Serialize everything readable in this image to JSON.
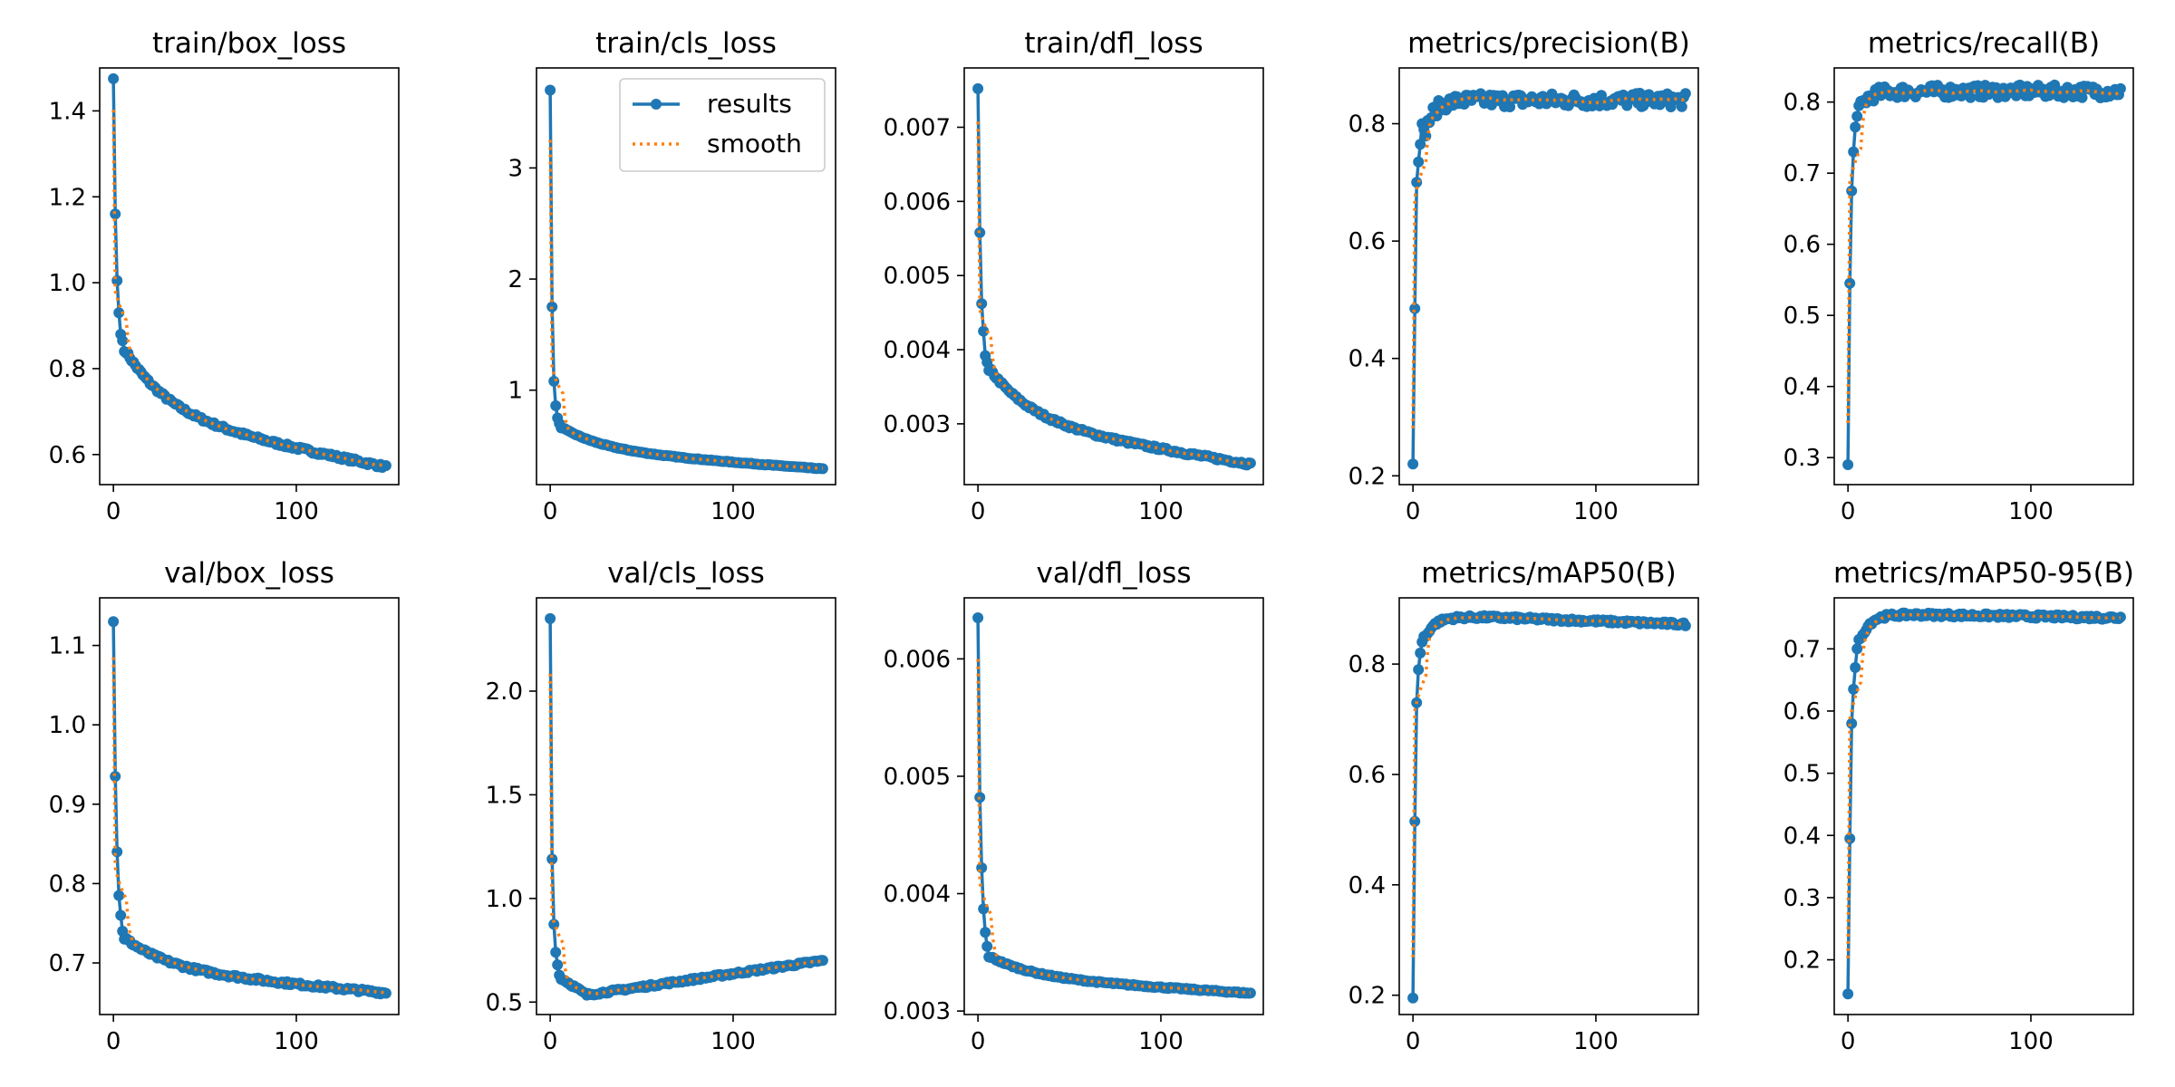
{
  "colors": {
    "results": "#1f77b4",
    "smooth": "#ff7f0e",
    "axes": "#000000",
    "background": "#ffffff"
  },
  "legend": {
    "results_label": "results",
    "smooth_label": "smooth",
    "location": "top-right of train/cls_loss"
  },
  "chart_data": [
    {
      "type": "line",
      "title": "train/box_loss",
      "xlabel": "",
      "ylabel": "",
      "x_range": [
        0,
        149
      ],
      "xlim": [
        -7.5,
        156
      ],
      "xticks": [
        0,
        100
      ],
      "ylim": [
        0.53,
        1.5
      ],
      "yticks": [
        0.6,
        0.8,
        1.0,
        1.2,
        1.4
      ],
      "ytick_labels": [
        "0.6",
        "0.8",
        "1.0",
        "1.2",
        "1.4"
      ],
      "series": [
        {
          "name": "results",
          "shape": "decay",
          "start": 1.475,
          "end": 0.57,
          "early": [
            1.475,
            1.16,
            1.005,
            0.93,
            0.88,
            0.865,
            0.84
          ],
          "noise": 0.004
        },
        {
          "name": "smooth"
        }
      ]
    },
    {
      "type": "line",
      "title": "train/cls_loss",
      "xlabel": "",
      "ylabel": "",
      "x_range": [
        0,
        149
      ],
      "xlim": [
        -7.5,
        156
      ],
      "xticks": [
        0,
        100
      ],
      "ylim": [
        0.15,
        3.9
      ],
      "yticks": [
        1,
        2,
        3
      ],
      "ytick_labels": [
        "1",
        "2",
        "3"
      ],
      "series": [
        {
          "name": "results",
          "shape": "decay",
          "start": 3.7,
          "end": 0.29,
          "early": [
            3.7,
            1.75,
            1.08,
            0.86,
            0.75,
            0.7,
            0.66
          ],
          "noise": 0.003
        },
        {
          "name": "smooth"
        }
      ]
    },
    {
      "type": "line",
      "title": "train/dfl_loss",
      "xlabel": "",
      "ylabel": "",
      "x_range": [
        0,
        149
      ],
      "xlim": [
        -7.5,
        156
      ],
      "xticks": [
        0,
        100
      ],
      "ylim": [
        0.00218,
        0.0078
      ],
      "yticks": [
        0.003,
        0.004,
        0.005,
        0.006,
        0.007
      ],
      "ytick_labels": [
        "0.003",
        "0.004",
        "0.005",
        "0.006",
        "0.007"
      ],
      "series": [
        {
          "name": "results",
          "shape": "decay",
          "start": 0.00752,
          "end": 0.00245,
          "early": [
            0.00752,
            0.00558,
            0.00462,
            0.00425,
            0.00392,
            0.00383,
            0.00372
          ],
          "noise": 2e-05
        },
        {
          "name": "smooth"
        }
      ]
    },
    {
      "type": "line",
      "title": "metrics/precision(B)",
      "xlabel": "",
      "ylabel": "",
      "x_range": [
        0,
        149
      ],
      "xlim": [
        -7.5,
        156
      ],
      "xticks": [
        0,
        100
      ],
      "ylim": [
        0.185,
        0.895
      ],
      "yticks": [
        0.2,
        0.4,
        0.6,
        0.8
      ],
      "ytick_labels": [
        "0.2",
        "0.4",
        "0.6",
        "0.8"
      ],
      "series": [
        {
          "name": "results",
          "shape": "rise",
          "start": 0.22,
          "plateau": 0.84,
          "early": [
            0.22,
            0.485,
            0.7,
            0.735,
            0.765,
            0.8,
            0.79
          ],
          "noise": 0.012
        },
        {
          "name": "smooth"
        }
      ]
    },
    {
      "type": "line",
      "title": "metrics/recall(B)",
      "xlabel": "",
      "ylabel": "",
      "x_range": [
        0,
        149
      ],
      "xlim": [
        -7.5,
        156
      ],
      "xticks": [
        0,
        100
      ],
      "ylim": [
        0.262,
        0.848
      ],
      "yticks": [
        0.3,
        0.4,
        0.5,
        0.6,
        0.7,
        0.8
      ],
      "ytick_labels": [
        "0.3",
        "0.4",
        "0.5",
        "0.6",
        "0.7",
        "0.8"
      ],
      "series": [
        {
          "name": "results",
          "shape": "rise",
          "start": 0.29,
          "plateau": 0.815,
          "early": [
            0.29,
            0.545,
            0.675,
            0.73,
            0.765,
            0.78,
            0.795
          ],
          "noise": 0.009
        },
        {
          "name": "smooth"
        }
      ]
    },
    {
      "type": "line",
      "title": "val/box_loss",
      "xlabel": "",
      "ylabel": "",
      "x_range": [
        0,
        149
      ],
      "xlim": [
        -7.5,
        156
      ],
      "xticks": [
        0,
        100
      ],
      "ylim": [
        0.635,
        1.16
      ],
      "yticks": [
        0.7,
        0.8,
        0.9,
        1.0,
        1.1
      ],
      "ytick_labels": [
        "0.7",
        "0.8",
        "0.9",
        "1.0",
        "1.1"
      ],
      "series": [
        {
          "name": "results",
          "shape": "decay",
          "start": 1.13,
          "end": 0.662,
          "early": [
            1.13,
            0.935,
            0.84,
            0.785,
            0.76,
            0.74,
            0.73
          ],
          "noise": 0.002
        },
        {
          "name": "smooth"
        }
      ]
    },
    {
      "type": "line",
      "title": "val/cls_loss",
      "xlabel": "",
      "ylabel": "",
      "x_range": [
        0,
        149
      ],
      "xlim": [
        -7.5,
        156
      ],
      "xticks": [
        0,
        100
      ],
      "ylim": [
        0.44,
        2.45
      ],
      "yticks": [
        0.5,
        1.0,
        1.5,
        2.0
      ],
      "ytick_labels": [
        "0.5",
        "1.0",
        "1.5",
        "2.0"
      ],
      "series": [
        {
          "name": "results",
          "shape": "dip",
          "start": 2.35,
          "min": 0.535,
          "end": 0.7,
          "early": [
            2.35,
            1.19,
            0.875,
            0.74,
            0.68,
            0.63,
            0.61
          ],
          "noise": 0.006
        },
        {
          "name": "smooth"
        }
      ]
    },
    {
      "type": "line",
      "title": "val/dfl_loss",
      "xlabel": "",
      "ylabel": "",
      "x_range": [
        0,
        149
      ],
      "xlim": [
        -7.5,
        156
      ],
      "xticks": [
        0,
        100
      ],
      "ylim": [
        0.00297,
        0.00652
      ],
      "yticks": [
        0.003,
        0.004,
        0.005,
        0.006
      ],
      "ytick_labels": [
        "0.003",
        "0.004",
        "0.005",
        "0.006"
      ],
      "series": [
        {
          "name": "results",
          "shape": "decay",
          "start": 0.00635,
          "end": 0.00315,
          "early": [
            0.00635,
            0.00482,
            0.00422,
            0.00387,
            0.00367,
            0.00355,
            0.00346
          ],
          "noise": 6e-06
        },
        {
          "name": "smooth"
        }
      ]
    },
    {
      "type": "line",
      "title": "metrics/mAP50(B)",
      "xlabel": "",
      "ylabel": "",
      "x_range": [
        0,
        149
      ],
      "xlim": [
        -7.5,
        156
      ],
      "xticks": [
        0,
        100
      ],
      "ylim": [
        0.165,
        0.92
      ],
      "yticks": [
        0.2,
        0.4,
        0.6,
        0.8
      ],
      "ytick_labels": [
        "0.2",
        "0.4",
        "0.6",
        "0.8"
      ],
      "series": [
        {
          "name": "results",
          "shape": "rise",
          "start": 0.195,
          "plateau": 0.885,
          "end": 0.872,
          "early": [
            0.195,
            0.515,
            0.73,
            0.79,
            0.82,
            0.84,
            0.85
          ],
          "noise": 0.003
        },
        {
          "name": "smooth"
        }
      ]
    },
    {
      "type": "line",
      "title": "metrics/mAP50-95(B)",
      "xlabel": "",
      "ylabel": "",
      "x_range": [
        0,
        149
      ],
      "xlim": [
        -7.5,
        156
      ],
      "xticks": [
        0,
        100
      ],
      "ylim": [
        0.112,
        0.782
      ],
      "yticks": [
        0.2,
        0.3,
        0.4,
        0.5,
        0.6,
        0.7
      ],
      "ytick_labels": [
        "0.2",
        "0.3",
        "0.4",
        "0.5",
        "0.6",
        "0.7"
      ],
      "series": [
        {
          "name": "results",
          "shape": "rise",
          "start": 0.145,
          "plateau": 0.755,
          "end": 0.75,
          "early": [
            0.145,
            0.395,
            0.58,
            0.635,
            0.67,
            0.7,
            0.715
          ],
          "noise": 0.003
        },
        {
          "name": "smooth"
        }
      ]
    }
  ]
}
